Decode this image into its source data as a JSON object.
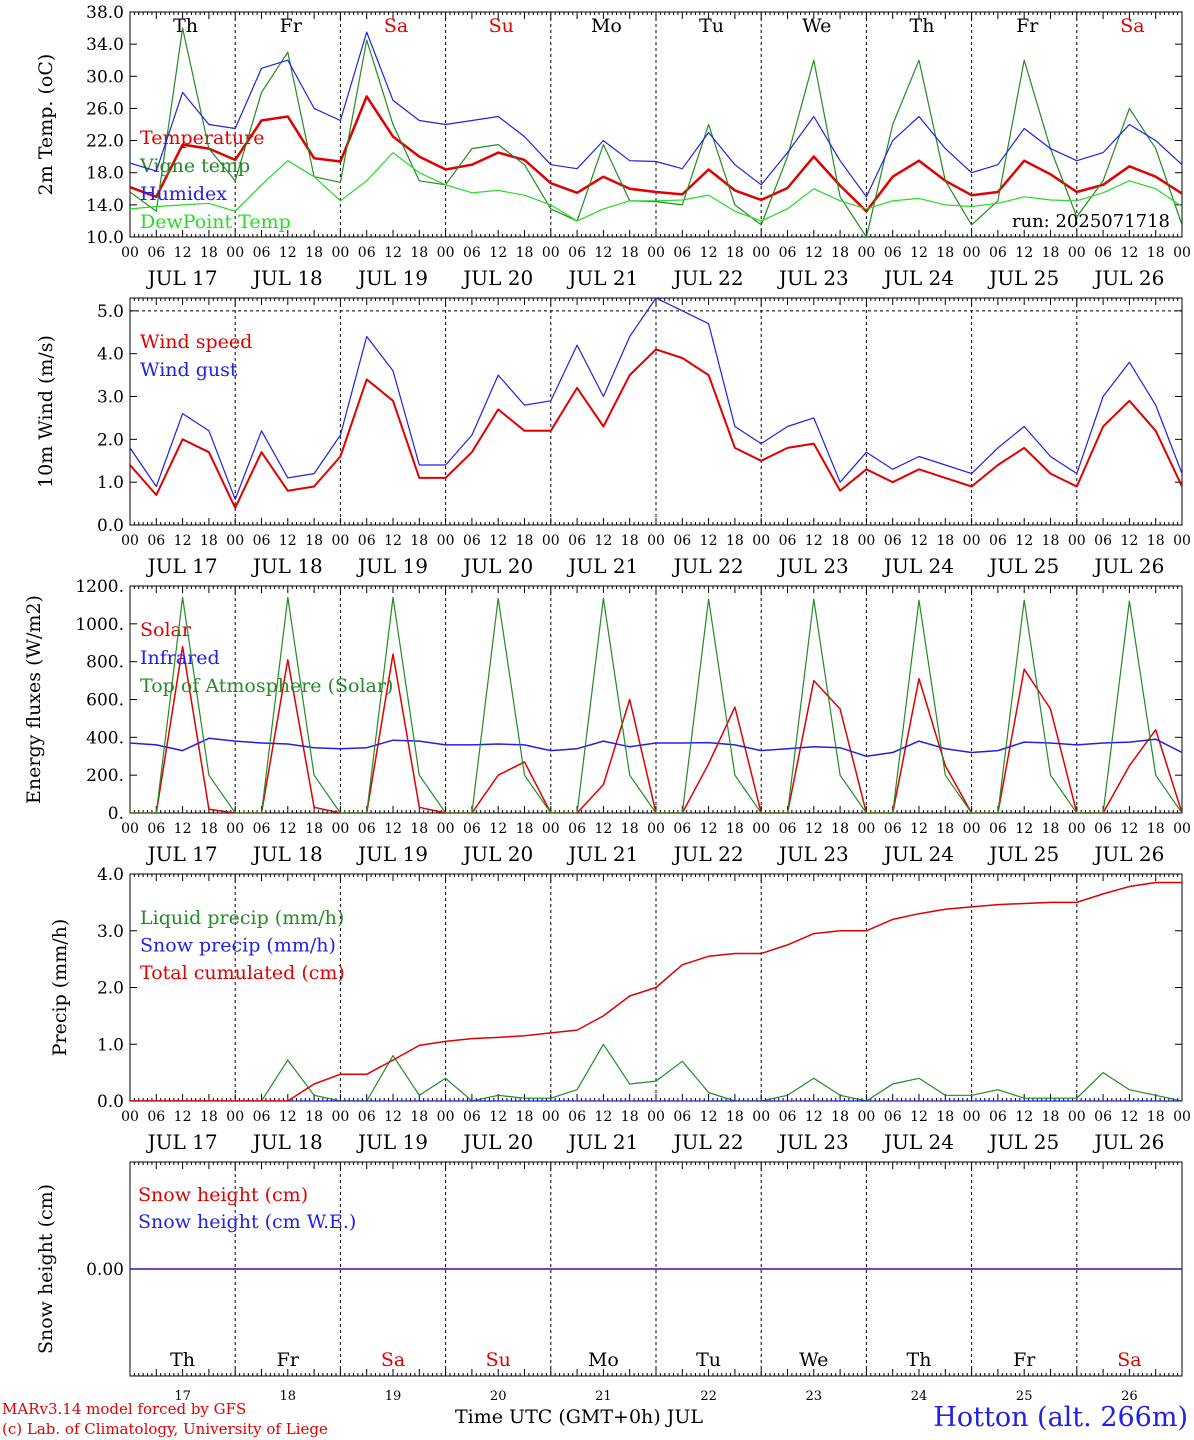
{
  "chart_data": [
    {
      "type": "line",
      "ylabel": "2m Temp. (oC)",
      "ylim": [
        10,
        38
      ],
      "yticks": [
        "10.0",
        "14.0",
        "18.0",
        "22.0",
        "26.0",
        "30.0",
        "34.0",
        "38.0"
      ],
      "annotation": "run: 2025071718",
      "days": [
        "JUL 17",
        "JUL 18",
        "JUL 19",
        "JUL 20",
        "JUL 21",
        "JUL 22",
        "JUL 23",
        "JUL 24",
        "JUL 25",
        "JUL 26"
      ],
      "weekdays": [
        "Th",
        "Fr",
        "Sa",
        "Su",
        "Mo",
        "Tu",
        "We",
        "Th",
        "Fr",
        "Sa"
      ],
      "weekday_colors": [
        "#000000",
        "#000000",
        "#e00000",
        "#e00000",
        "#000000",
        "#000000",
        "#000000",
        "#000000",
        "#000000",
        "#e00000"
      ],
      "hour_ticks": [
        "00",
        "06",
        "12",
        "18"
      ],
      "x_hours": [
        0,
        6,
        12,
        18,
        24,
        30,
        36,
        42,
        48,
        54,
        60,
        66,
        72,
        78,
        84,
        90,
        96,
        102,
        108,
        114,
        120,
        126,
        132,
        138,
        144,
        150,
        156,
        162,
        168,
        174,
        180,
        186,
        192,
        198,
        204,
        210,
        216,
        222,
        228,
        234,
        240
      ],
      "series": [
        {
          "name": "Temperature",
          "color": "#e00000",
          "width": 2.5,
          "values": [
            16.2,
            15.0,
            21.5,
            21.0,
            19.6,
            24.5,
            25.0,
            19.8,
            19.4,
            27.5,
            22.5,
            20.0,
            18.4,
            19.0,
            20.5,
            19.6,
            16.7,
            15.5,
            17.5,
            16.0,
            15.6,
            15.3,
            18.4,
            15.8,
            14.6,
            16.1,
            20.0,
            16.4,
            13.2,
            17.5,
            19.5,
            17.0,
            15.2,
            15.6,
            19.5,
            17.8,
            15.6,
            16.5,
            18.8,
            17.5,
            15.4
          ]
        },
        {
          "name": "Vigne temp",
          "color": "#228b22",
          "width": 1.2,
          "values": [
            15.6,
            13.2,
            36.0,
            21.0,
            17.0,
            28.0,
            33.0,
            17.5,
            16.8,
            34.5,
            24.0,
            17.0,
            16.5,
            21.0,
            21.5,
            19.0,
            13.5,
            12.0,
            21.5,
            14.5,
            14.4,
            14.0,
            24.0,
            14.0,
            11.5,
            20.0,
            32.0,
            15.0,
            10.0,
            24.0,
            32.0,
            17.0,
            11.5,
            14.5,
            32.0,
            21.0,
            12.5,
            17.0,
            26.0,
            21.0,
            11.5
          ]
        },
        {
          "name": "Humidex",
          "color": "#2020e6",
          "width": 1.2,
          "values": [
            19.2,
            18.2,
            28.0,
            24.0,
            23.5,
            31.0,
            32.0,
            26.0,
            24.5,
            35.5,
            27.0,
            24.5,
            24.0,
            24.5,
            25.0,
            22.5,
            19.0,
            18.5,
            22.0,
            19.5,
            19.4,
            18.5,
            23.0,
            19.0,
            16.5,
            20.5,
            25.0,
            19.5,
            15.0,
            22.0,
            25.0,
            21.0,
            18.0,
            19.0,
            23.5,
            21.0,
            19.5,
            20.5,
            24.0,
            22.0,
            19.0
          ]
        },
        {
          "name": "DewPoint Temp",
          "color": "#22dd22",
          "width": 1.2,
          "values": [
            13.5,
            13.8,
            14.0,
            14.2,
            13.2,
            16.5,
            19.5,
            17.5,
            14.5,
            17.0,
            20.5,
            18.0,
            16.5,
            15.5,
            15.8,
            15.2,
            14.0,
            12.0,
            13.5,
            14.5,
            14.5,
            14.6,
            15.2,
            13.2,
            12.0,
            13.5,
            16.0,
            14.5,
            13.5,
            14.5,
            14.8,
            14.0,
            13.8,
            14.2,
            15.0,
            14.6,
            14.5,
            15.5,
            17.0,
            16.0,
            13.8
          ]
        }
      ]
    },
    {
      "type": "line",
      "ylabel": "10m Wind (m/s)",
      "ylim": [
        0,
        5.3
      ],
      "yticks": [
        "0.0",
        "1.0",
        "2.0",
        "3.0",
        "4.0",
        "5.0"
      ],
      "days": [
        "JUL 17",
        "JUL 18",
        "JUL 19",
        "JUL 20",
        "JUL 21",
        "JUL 22",
        "JUL 23",
        "JUL 24",
        "JUL 25",
        "JUL 26"
      ],
      "hour_ticks": [
        "00",
        "06",
        "12",
        "18"
      ],
      "x_hours": [
        0,
        6,
        12,
        18,
        24,
        30,
        36,
        42,
        48,
        54,
        60,
        66,
        72,
        78,
        84,
        90,
        96,
        102,
        108,
        114,
        120,
        126,
        132,
        138,
        144,
        150,
        156,
        162,
        168,
        174,
        180,
        186,
        192,
        198,
        204,
        210,
        216,
        222,
        228,
        234,
        240
      ],
      "series": [
        {
          "name": "Wind speed",
          "color": "#e00000",
          "width": 2,
          "values": [
            1.4,
            0.7,
            2.0,
            1.7,
            0.4,
            1.7,
            0.8,
            0.9,
            1.6,
            3.4,
            2.9,
            1.1,
            1.1,
            1.7,
            2.7,
            2.2,
            2.2,
            3.2,
            2.3,
            3.5,
            4.1,
            3.9,
            3.5,
            1.8,
            1.5,
            1.8,
            1.9,
            0.8,
            1.3,
            1.0,
            1.3,
            1.1,
            0.9,
            1.4,
            1.8,
            1.2,
            0.9,
            2.3,
            2.9,
            2.2,
            0.9
          ]
        },
        {
          "name": "Wind gust",
          "color": "#2020e6",
          "width": 1.2,
          "values": [
            1.8,
            0.9,
            2.6,
            2.2,
            0.6,
            2.2,
            1.1,
            1.2,
            2.1,
            4.4,
            3.6,
            1.4,
            1.4,
            2.1,
            3.5,
            2.8,
            2.9,
            4.2,
            3.0,
            4.4,
            5.3,
            5.0,
            4.7,
            2.3,
            1.9,
            2.3,
            2.5,
            1.0,
            1.7,
            1.3,
            1.6,
            1.4,
            1.2,
            1.8,
            2.3,
            1.6,
            1.2,
            3.0,
            3.8,
            2.8,
            1.2
          ]
        }
      ]
    },
    {
      "type": "line",
      "ylabel": "Energy fluxes (W/m2)",
      "ylim": [
        0,
        1200
      ],
      "yticks": [
        "0.",
        "200.",
        "400.",
        "600.",
        "800.",
        "1000.",
        "1200."
      ],
      "days": [
        "JUL 17",
        "JUL 18",
        "JUL 19",
        "JUL 20",
        "JUL 21",
        "JUL 22",
        "JUL 23",
        "JUL 24",
        "JUL 25",
        "JUL 26"
      ],
      "hour_ticks": [
        "00",
        "06",
        "12",
        "18"
      ],
      "x_hours": [
        0,
        6,
        12,
        18,
        24,
        30,
        36,
        42,
        48,
        54,
        60,
        66,
        72,
        78,
        84,
        90,
        96,
        102,
        108,
        114,
        120,
        126,
        132,
        138,
        144,
        150,
        156,
        162,
        168,
        174,
        180,
        186,
        192,
        198,
        204,
        210,
        216,
        222,
        228,
        234,
        240
      ],
      "series": [
        {
          "name": "Solar",
          "color": "#e00000",
          "width": 1.5,
          "values": [
            0,
            0,
            880,
            20,
            0,
            0,
            810,
            30,
            0,
            0,
            840,
            30,
            0,
            0,
            200,
            270,
            0,
            0,
            150,
            600,
            0,
            0,
            260,
            560,
            0,
            0,
            700,
            550,
            0,
            0,
            710,
            250,
            0,
            0,
            760,
            550,
            0,
            0,
            250,
            440,
            0
          ]
        },
        {
          "name": "Infrared",
          "color": "#2020e6",
          "width": 1.5,
          "values": [
            370,
            360,
            330,
            395,
            380,
            370,
            365,
            345,
            340,
            345,
            385,
            380,
            360,
            360,
            365,
            360,
            330,
            340,
            380,
            350,
            370,
            370,
            372,
            360,
            330,
            340,
            350,
            345,
            300,
            320,
            380,
            340,
            320,
            330,
            375,
            370,
            360,
            370,
            375,
            390,
            320
          ]
        },
        {
          "name": "Top of Atmosphere (Solar)",
          "color": "#228b22",
          "width": 1.2,
          "values": [
            0,
            0,
            1140,
            200,
            0,
            0,
            1140,
            200,
            0,
            0,
            1140,
            200,
            0,
            0,
            1135,
            200,
            0,
            0,
            1135,
            200,
            0,
            0,
            1130,
            200,
            0,
            0,
            1130,
            200,
            0,
            0,
            1125,
            200,
            0,
            0,
            1125,
            200,
            0,
            0,
            1120,
            200,
            0
          ]
        }
      ]
    },
    {
      "type": "line",
      "ylabel": "Precip (mm/h)",
      "ylim": [
        0,
        4.0
      ],
      "yticks": [
        "0.0",
        "1.0",
        "2.0",
        "3.0",
        "4.0"
      ],
      "days": [
        "JUL 17",
        "JUL 18",
        "JUL 19",
        "JUL 20",
        "JUL 21",
        "JUL 22",
        "JUL 23",
        "JUL 24",
        "JUL 25",
        "JUL 26"
      ],
      "hour_ticks": [
        "00",
        "06",
        "12",
        "18"
      ],
      "x_hours": [
        0,
        6,
        12,
        18,
        24,
        30,
        36,
        42,
        48,
        54,
        60,
        66,
        72,
        78,
        84,
        90,
        96,
        102,
        108,
        114,
        120,
        126,
        132,
        138,
        144,
        150,
        156,
        162,
        168,
        174,
        180,
        186,
        192,
        198,
        204,
        210,
        216,
        222,
        228,
        234,
        240
      ],
      "series": [
        {
          "name": "Liquid precip (mm/h)",
          "color": "#228b22",
          "width": 1.2,
          "values": [
            0,
            0,
            0,
            0,
            0,
            0,
            0.72,
            0.1,
            0,
            0,
            0.8,
            0.1,
            0.4,
            0,
            0.1,
            0.05,
            0.05,
            0.2,
            1.0,
            0.3,
            0.35,
            0.7,
            0.15,
            0,
            0,
            0.1,
            0.4,
            0.1,
            0,
            0.3,
            0.4,
            0.1,
            0.1,
            0.2,
            0.05,
            0.05,
            0.05,
            0.5,
            0.2,
            0.1,
            0
          ]
        },
        {
          "name": "Snow precip (mm/h)",
          "color": "#2020e6",
          "width": 1.2,
          "values": [
            0,
            0,
            0,
            0,
            0,
            0,
            0,
            0,
            0,
            0,
            0,
            0,
            0,
            0,
            0,
            0,
            0,
            0,
            0,
            0,
            0,
            0,
            0,
            0,
            0,
            0,
            0,
            0,
            0,
            0,
            0,
            0,
            0,
            0,
            0,
            0,
            0,
            0,
            0,
            0,
            0
          ]
        },
        {
          "name": "Total cumulated (cm)",
          "color": "#e00000",
          "width": 1.5,
          "values": [
            0,
            0,
            0,
            0,
            0,
            0,
            0,
            0.3,
            0.47,
            0.47,
            0.72,
            0.98,
            1.05,
            1.1,
            1.12,
            1.15,
            1.2,
            1.25,
            1.5,
            1.85,
            2.0,
            2.4,
            2.55,
            2.6,
            2.6,
            2.75,
            2.95,
            3.0,
            3.0,
            3.2,
            3.3,
            3.38,
            3.42,
            3.46,
            3.48,
            3.5,
            3.5,
            3.65,
            3.78,
            3.85,
            3.85
          ]
        }
      ]
    },
    {
      "type": "line",
      "ylabel": "Snow height (cm)",
      "ylim": [
        -1,
        1
      ],
      "yticks": [
        "0.00"
      ],
      "day_numbers": [
        "17",
        "18",
        "19",
        "20",
        "21",
        "22",
        "23",
        "24",
        "25",
        "26"
      ],
      "weekdays": [
        "Th",
        "Fr",
        "Sa",
        "Su",
        "Mo",
        "Tu",
        "We",
        "Th",
        "Fr",
        "Sa"
      ],
      "weekday_colors": [
        "#000000",
        "#000000",
        "#e00000",
        "#e00000",
        "#000000",
        "#000000",
        "#000000",
        "#000000",
        "#000000",
        "#e00000"
      ],
      "x_hours": [
        0,
        240
      ],
      "series": [
        {
          "name": "Snow height (cm)",
          "color": "#e00000",
          "width": 1.5,
          "values": [
            0,
            0
          ]
        },
        {
          "name": "Snow height (cm W.E.)",
          "color": "#2020e6",
          "width": 1.2,
          "values": [
            0,
            0
          ]
        }
      ]
    }
  ],
  "footer": {
    "credit_line1": "MARv3.14 model forced by GFS",
    "credit_line2": "(c) Lab. of Climatology, University of Liege",
    "xaxis_title": "Time UTC (GMT+0h) JUL",
    "station": "Hotton (alt. 266m)"
  }
}
